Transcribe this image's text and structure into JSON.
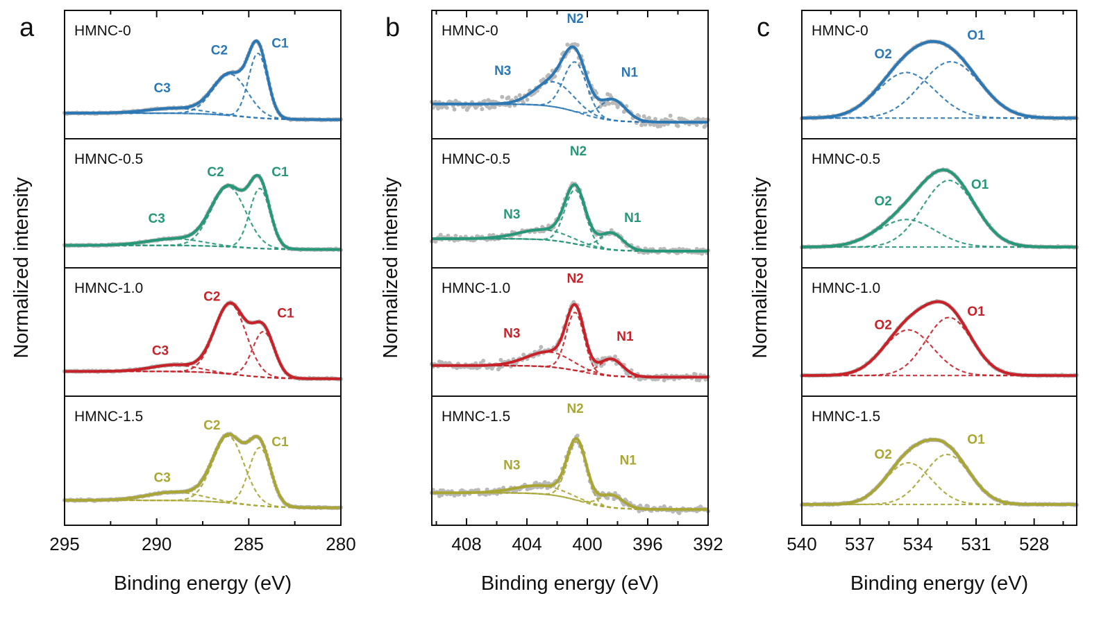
{
  "chart_data": [
    {
      "type": "line",
      "panel": "a",
      "xlabel": "Binding energy (eV)",
      "ylabel": "Normalized intensity",
      "xlim": [
        295,
        280
      ],
      "xticks": [
        295,
        290,
        285,
        280
      ],
      "minor_tick_step": 2.5,
      "ylim": [
        -0.25,
        1.3
      ],
      "grid": false,
      "subplots": [
        {
          "sample": "HMNC-0",
          "color": "#2b78b5",
          "noise": 0.008,
          "background": {
            "high": 0.06,
            "low": -0.02,
            "center": 285.5
          },
          "peaks": [
            {
              "name": "C1",
              "center": 284.5,
              "height": 0.78,
              "fwhm": 1.2,
              "label_x": 283.3,
              "label_y": 0.85
            },
            {
              "name": "C2",
              "center": 286.0,
              "height": 0.5,
              "fwhm": 2.2,
              "label_x": 286.6,
              "label_y": 0.77
            },
            {
              "name": "C3",
              "center": 289.0,
              "height": 0.06,
              "fwhm": 3.5,
              "label_x": 289.7,
              "label_y": 0.31
            }
          ]
        },
        {
          "sample": "HMNC-0.5",
          "color": "#27977a",
          "noise": 0.008,
          "background": {
            "high": 0.02,
            "low": -0.03,
            "center": 285.5
          },
          "peaks": [
            {
              "name": "C1",
              "center": 284.4,
              "height": 0.72,
              "fwhm": 1.3,
              "label_x": 283.3,
              "label_y": 0.85
            },
            {
              "name": "C2",
              "center": 286.1,
              "height": 0.72,
              "fwhm": 2.2,
              "label_x": 286.8,
              "label_y": 0.85
            },
            {
              "name": "C3",
              "center": 289.0,
              "height": 0.08,
              "fwhm": 3.5,
              "label_x": 290.0,
              "label_y": 0.29
            }
          ]
        },
        {
          "sample": "HMNC-1.0",
          "color": "#c72229",
          "noise": 0.008,
          "background": {
            "high": 0.05,
            "low": -0.04,
            "center": 285.5
          },
          "peaks": [
            {
              "name": "C1",
              "center": 284.2,
              "height": 0.55,
              "fwhm": 1.4,
              "label_x": 283.0,
              "label_y": 0.7
            },
            {
              "name": "C2",
              "center": 286.0,
              "height": 0.85,
              "fwhm": 2.0,
              "label_x": 287.0,
              "label_y": 0.9
            },
            {
              "name": "C3",
              "center": 289.0,
              "height": 0.08,
              "fwhm": 3.0,
              "label_x": 289.8,
              "label_y": 0.25
            }
          ]
        },
        {
          "sample": "HMNC-1.5",
          "color": "#a9a634",
          "noise": 0.008,
          "background": {
            "high": 0.05,
            "low": -0.04,
            "center": 285.5
          },
          "peaks": [
            {
              "name": "C1",
              "center": 284.4,
              "height": 0.7,
              "fwhm": 1.4,
              "label_x": 283.3,
              "label_y": 0.7
            },
            {
              "name": "C2",
              "center": 286.1,
              "height": 0.8,
              "fwhm": 2.0,
              "label_x": 287.0,
              "label_y": 0.9
            },
            {
              "name": "C3",
              "center": 289.0,
              "height": 0.1,
              "fwhm": 3.5,
              "label_x": 289.7,
              "label_y": 0.27
            }
          ]
        }
      ]
    },
    {
      "type": "line",
      "panel": "b",
      "xlabel": "Binding energy (eV)",
      "ylabel": "Normalized intensity",
      "xlim": [
        410.3,
        392
      ],
      "xticks": [
        408,
        404,
        400,
        396,
        392
      ],
      "minor_tick_step": 2,
      "ylim": [
        -0.25,
        1.3
      ],
      "grid": false,
      "subplots": [
        {
          "sample": "HMNC-0",
          "color": "#2b78b5",
          "noise": 0.07,
          "background": {
            "high": 0.17,
            "low": -0.05,
            "center": 400.5
          },
          "peaks": [
            {
              "name": "N1",
              "center": 398.3,
              "height": 0.25,
              "fwhm": 2.0,
              "label_x": 397.2,
              "label_y": 0.5
            },
            {
              "name": "N2",
              "center": 400.8,
              "height": 0.6,
              "fwhm": 1.8,
              "label_x": 400.8,
              "label_y": 1.15
            },
            {
              "name": "N3",
              "center": 402.2,
              "height": 0.3,
              "fwhm": 3.0,
              "label_x": 405.6,
              "label_y": 0.52
            }
          ]
        },
        {
          "sample": "HMNC-0.5",
          "color": "#27977a",
          "noise": 0.035,
          "background": {
            "high": 0.1,
            "low": -0.05,
            "center": 400.5
          },
          "peaks": [
            {
              "name": "N1",
              "center": 398.4,
              "height": 0.2,
              "fwhm": 1.8,
              "label_x": 397.0,
              "label_y": 0.3
            },
            {
              "name": "N2",
              "center": 400.8,
              "height": 0.65,
              "fwhm": 1.6,
              "label_x": 400.6,
              "label_y": 1.1
            },
            {
              "name": "N3",
              "center": 402.8,
              "height": 0.12,
              "fwhm": 4.0,
              "label_x": 405.0,
              "label_y": 0.34
            }
          ]
        },
        {
          "sample": "HMNC-1.0",
          "color": "#c72229",
          "noise": 0.045,
          "background": {
            "high": 0.12,
            "low": -0.02,
            "center": 400.5
          },
          "peaks": [
            {
              "name": "N1",
              "center": 398.4,
              "height": 0.2,
              "fwhm": 1.8,
              "label_x": 397.5,
              "label_y": 0.42
            },
            {
              "name": "N2",
              "center": 400.8,
              "height": 0.7,
              "fwhm": 1.4,
              "label_x": 400.8,
              "label_y": 1.12
            },
            {
              "name": "N3",
              "center": 402.5,
              "height": 0.18,
              "fwhm": 3.5,
              "label_x": 405.0,
              "label_y": 0.46
            }
          ]
        },
        {
          "sample": "HMNC-1.5",
          "color": "#a9a634",
          "noise": 0.04,
          "background": {
            "high": 0.14,
            "low": -0.06,
            "center": 400.5
          },
          "peaks": [
            {
              "name": "N1",
              "center": 398.4,
              "height": 0.15,
              "fwhm": 1.8,
              "label_x": 397.3,
              "label_y": 0.48
            },
            {
              "name": "N2",
              "center": 400.7,
              "height": 0.7,
              "fwhm": 1.5,
              "label_x": 400.8,
              "label_y": 1.1
            },
            {
              "name": "N3",
              "center": 403.0,
              "height": 0.1,
              "fwhm": 4.0,
              "label_x": 405.0,
              "label_y": 0.42
            }
          ]
        }
      ]
    },
    {
      "type": "line",
      "panel": "c",
      "xlabel": "Binding energy (eV)",
      "ylabel": "Normalized intensity",
      "xlim": [
        540,
        525.8
      ],
      "xticks": [
        540,
        537,
        534,
        531,
        528
      ],
      "minor_tick_step": 1.5,
      "ylim": [
        -0.25,
        1.3
      ],
      "grid": false,
      "subplots": [
        {
          "sample": "HMNC-0",
          "color": "#2b78b5",
          "noise": 0.008,
          "background": {
            "high": 0.0,
            "low": 0.0,
            "center": 533.5
          },
          "peaks": [
            {
              "name": "O1",
              "center": 532.3,
              "height": 0.68,
              "fwhm": 3.6,
              "label_x": 531.0,
              "label_y": 0.95
            },
            {
              "name": "O2",
              "center": 534.6,
              "height": 0.55,
              "fwhm": 3.5,
              "label_x": 535.8,
              "label_y": 0.72
            }
          ]
        },
        {
          "sample": "HMNC-0.5",
          "color": "#27977a",
          "noise": 0.008,
          "background": {
            "high": 0.0,
            "low": 0.0,
            "center": 533.5
          },
          "peaks": [
            {
              "name": "O1",
              "center": 532.4,
              "height": 0.8,
              "fwhm": 3.2,
              "label_x": 530.8,
              "label_y": 0.7
            },
            {
              "name": "O2",
              "center": 534.6,
              "height": 0.33,
              "fwhm": 3.5,
              "label_x": 535.8,
              "label_y": 0.5
            }
          ]
        },
        {
          "sample": "HMNC-1.0",
          "color": "#c72229",
          "noise": 0.008,
          "background": {
            "high": 0.0,
            "low": 0.0,
            "center": 533.5
          },
          "peaks": [
            {
              "name": "O1",
              "center": 532.4,
              "height": 0.7,
              "fwhm": 2.8,
              "label_x": 531.0,
              "label_y": 0.72
            },
            {
              "name": "O2",
              "center": 534.5,
              "height": 0.55,
              "fwhm": 3.0,
              "label_x": 535.8,
              "label_y": 0.56
            }
          ]
        },
        {
          "sample": "HMNC-1.5",
          "color": "#a9a634",
          "noise": 0.008,
          "background": {
            "high": 0.0,
            "low": 0.0,
            "center": 533.5
          },
          "peaks": [
            {
              "name": "O1",
              "center": 532.5,
              "height": 0.6,
              "fwhm": 2.8,
              "label_x": 531.0,
              "label_y": 0.73
            },
            {
              "name": "O2",
              "center": 534.5,
              "height": 0.5,
              "fwhm": 2.8,
              "label_x": 535.8,
              "label_y": 0.55
            }
          ]
        }
      ]
    }
  ]
}
